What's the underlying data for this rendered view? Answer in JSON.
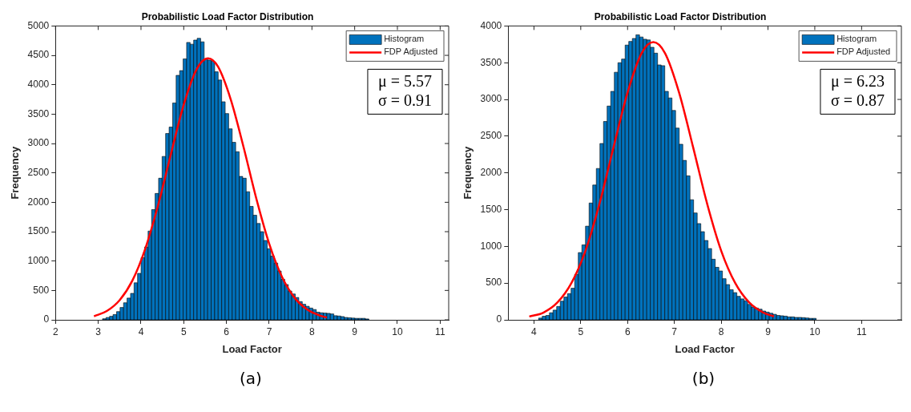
{
  "chart_data": [
    {
      "type": "histogram",
      "title": "Probabilistic Load Factor Distribution",
      "xlabel": "Load Factor",
      "ylabel": "Frequency",
      "xlim": [
        2,
        11.2
      ],
      "xticks": [
        2,
        3,
        4,
        5,
        6,
        7,
        8,
        9,
        10,
        11
      ],
      "ylim": [
        0,
        5000
      ],
      "yticks": [
        0,
        500,
        1000,
        1500,
        2000,
        2500,
        3000,
        3500,
        4000,
        4500,
        5000
      ],
      "legend": "top right",
      "annotations": [
        "μ = 5.57",
        "σ = 0.91",
        "(a)"
      ],
      "bins": [
        3.1,
        3.182,
        3.264,
        3.346,
        3.428,
        3.51,
        3.592,
        3.674,
        3.756,
        3.838,
        3.92,
        4.002,
        4.084,
        4.166,
        4.248,
        4.33,
        4.412,
        4.494,
        4.576,
        4.658,
        4.74,
        4.822,
        4.904,
        4.986,
        5.068,
        5.15,
        5.232,
        5.314,
        5.396,
        5.478,
        5.56,
        5.642,
        5.724,
        5.806,
        5.888,
        5.97,
        6.052,
        6.134,
        6.216,
        6.298,
        6.38,
        6.462,
        6.544,
        6.626,
        6.708,
        6.79,
        6.872,
        6.954,
        7.036,
        7.118,
        7.2,
        7.282,
        7.364,
        7.446,
        7.528,
        7.61,
        7.692,
        7.774,
        7.856,
        7.938,
        8.02,
        8.102,
        8.184,
        8.266,
        8.348,
        8.43,
        8.512,
        8.594,
        8.676,
        8.758,
        8.84,
        8.922,
        9.004,
        9.086,
        9.168,
        9.25,
        9.332
      ],
      "series": [
        {
          "name": "Histogram",
          "type": "histogram",
          "color": "#0072bd",
          "values": [
            18,
            40,
            60,
            90,
            140,
            210,
            290,
            370,
            450,
            630,
            790,
            1060,
            1240,
            1510,
            1875,
            2150,
            2410,
            2780,
            3170,
            3280,
            3690,
            4160,
            4240,
            4440,
            4720,
            4690,
            4760,
            4790,
            4730,
            4440,
            4420,
            4400,
            4220,
            4080,
            3710,
            3510,
            3250,
            3020,
            2860,
            2440,
            2410,
            2180,
            1930,
            1780,
            1640,
            1500,
            1350,
            1210,
            1085,
            965,
            830,
            690,
            600,
            490,
            440,
            380,
            310,
            265,
            230,
            200,
            175,
            130,
            120,
            115,
            110,
            100,
            70,
            65,
            55,
            40,
            35,
            30,
            25,
            25,
            25,
            15
          ]
        },
        {
          "name": "FDP Adjusted",
          "type": "line",
          "color": "#ff0000",
          "x": [
            2.9,
            3.2,
            3.5,
            3.8,
            4.1,
            4.4,
            4.7,
            5.0,
            5.3,
            5.57,
            5.8,
            6.1,
            6.4,
            6.7,
            7.0,
            7.3,
            7.6,
            7.9,
            8.2,
            8.35
          ],
          "values": [
            60,
            150,
            335,
            670,
            1210,
            1950,
            2820,
            3660,
            4260,
            4450,
            4310,
            3750,
            2940,
            2060,
            1295,
            730,
            370,
            170,
            70,
            40
          ]
        }
      ]
    },
    {
      "type": "histogram",
      "title": "Probabilistic Load Factor Distribution",
      "xlabel": "Load Factor",
      "ylabel": "Frequency",
      "xlim": [
        3.45,
        11.85
      ],
      "xticks": [
        4,
        5,
        6,
        7,
        8,
        9,
        10,
        11
      ],
      "ylim": [
        0,
        4000
      ],
      "yticks": [
        0,
        500,
        1000,
        1500,
        2000,
        2500,
        3000,
        3500,
        4000
      ],
      "legend": "top right",
      "annotations": [
        "μ = 6.23",
        "σ = 0.87",
        "(b)"
      ],
      "bins": [
        4.1,
        4.177,
        4.254,
        4.331,
        4.408,
        4.485,
        4.562,
        4.639,
        4.716,
        4.793,
        4.87,
        4.947,
        5.024,
        5.101,
        5.178,
        5.255,
        5.332,
        5.409,
        5.486,
        5.563,
        5.64,
        5.717,
        5.794,
        5.871,
        5.948,
        6.025,
        6.102,
        6.179,
        6.256,
        6.333,
        6.41,
        6.487,
        6.564,
        6.641,
        6.718,
        6.795,
        6.872,
        6.949,
        7.026,
        7.103,
        7.18,
        7.257,
        7.334,
        7.411,
        7.488,
        7.565,
        7.642,
        7.719,
        7.796,
        7.873,
        7.95,
        8.027,
        8.104,
        8.181,
        8.258,
        8.335,
        8.412,
        8.489,
        8.566,
        8.643,
        8.72,
        8.797,
        8.874,
        8.951,
        9.028,
        9.105,
        9.182,
        9.259,
        9.336,
        9.413,
        9.49,
        9.567,
        9.644,
        9.721,
        9.798,
        9.875,
        9.952,
        10.029
      ],
      "series": [
        {
          "name": "Histogram",
          "type": "histogram",
          "color": "#0072bd",
          "values": [
            24,
            49,
            60,
            96,
            132,
            182,
            254,
            310,
            357,
            430,
            620,
            915,
            1020,
            1275,
            1590,
            1835,
            2060,
            2400,
            2700,
            2910,
            3110,
            3370,
            3500,
            3550,
            3740,
            3790,
            3830,
            3880,
            3850,
            3820,
            3810,
            3710,
            3630,
            3470,
            3460,
            3110,
            3020,
            2850,
            2610,
            2390,
            2170,
            1960,
            1635,
            1455,
            1310,
            1200,
            1080,
            970,
            825,
            715,
            665,
            560,
            480,
            410,
            370,
            320,
            285,
            260,
            210,
            175,
            160,
            145,
            120,
            105,
            90,
            75,
            60,
            55,
            50,
            40,
            40,
            33,
            33,
            30,
            25,
            20,
            20
          ]
        },
        {
          "name": "FDP Adjusted",
          "type": "line",
          "color": "#ff0000",
          "x": [
            3.9,
            4.2,
            4.5,
            4.8,
            5.1,
            5.4,
            5.7,
            6.0,
            6.3,
            6.55,
            6.8,
            7.1,
            7.4,
            7.7,
            8.0,
            8.3,
            8.6,
            8.9,
            9.13
          ],
          "values": [
            45,
            98,
            235,
            500,
            940,
            1580,
            2350,
            3095,
            3630,
            3780,
            3630,
            3095,
            2350,
            1580,
            940,
            500,
            235,
            98,
            46
          ]
        }
      ]
    }
  ]
}
